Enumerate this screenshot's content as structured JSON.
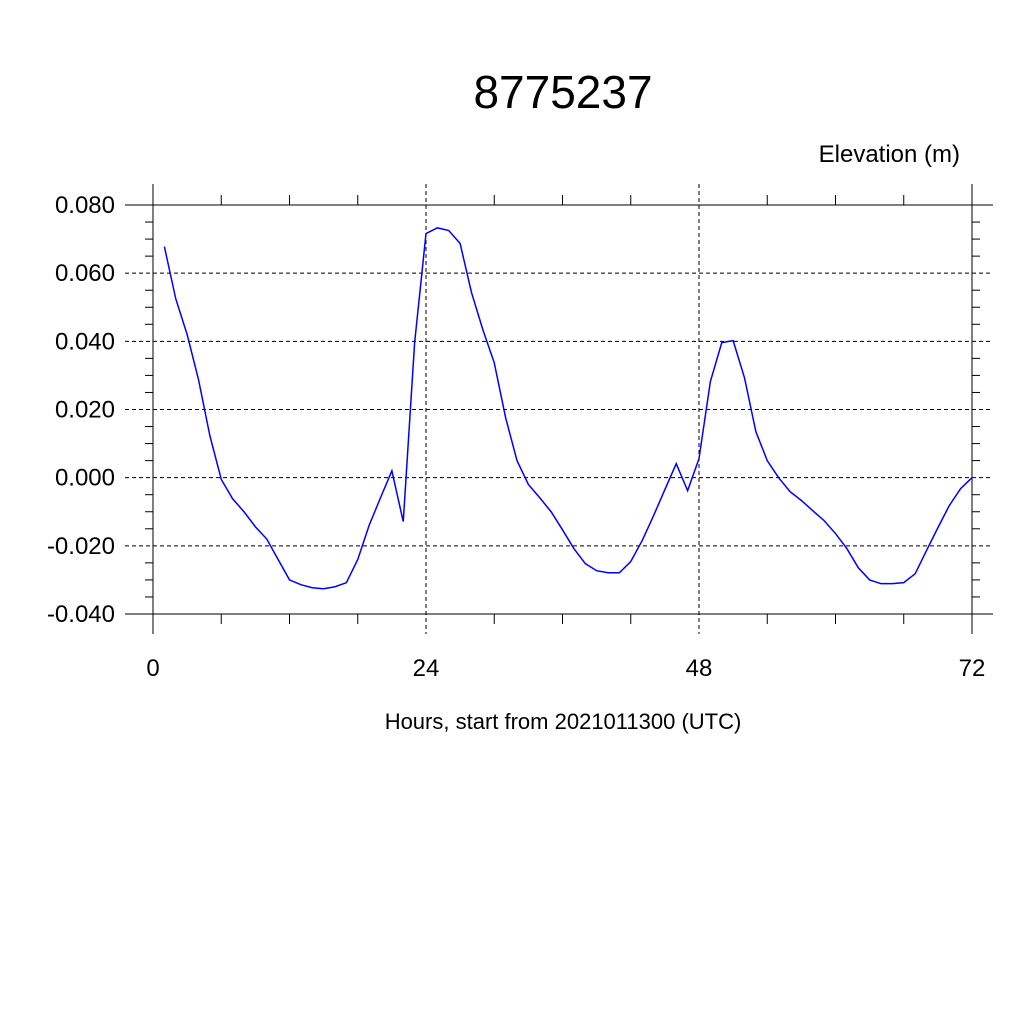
{
  "chart_data": {
    "type": "line",
    "title": "8775237",
    "subtitle": "Elevation (m)",
    "x_label": "Hours, start from 2021011300 (UTC)",
    "x": [
      1,
      2,
      3,
      4,
      5,
      6,
      7,
      8,
      9,
      10,
      11,
      12,
      13,
      14,
      15,
      16,
      17,
      18,
      19,
      20,
      21,
      22,
      23,
      24,
      25,
      26,
      27,
      28,
      29,
      30,
      31,
      32,
      33,
      34,
      35,
      36,
      37,
      38,
      39,
      40,
      41,
      42,
      43,
      44,
      45,
      46,
      47,
      48,
      49,
      50,
      51,
      52,
      53,
      54,
      55,
      56,
      57,
      58,
      59,
      60,
      61,
      62,
      63,
      64,
      65,
      66,
      67,
      68,
      69,
      70,
      71,
      72
    ],
    "series": [
      {
        "color": "#0000ff",
        "values": [
          0.0678,
          0.0525,
          0.042,
          0.0288,
          0.0123,
          -0.0005,
          -0.0062,
          -0.01,
          -0.0144,
          -0.018,
          -0.024,
          -0.03,
          -0.0314,
          -0.0323,
          -0.0326,
          -0.032,
          -0.0308,
          -0.024,
          -0.014,
          -0.0059,
          0.002,
          -0.0129,
          0.0396,
          0.0716,
          0.0733,
          0.0725,
          0.0687,
          0.0543,
          0.0434,
          0.0337,
          0.0176,
          0.005,
          -0.002,
          -0.0059,
          -0.01,
          -0.0153,
          -0.0208,
          -0.0252,
          -0.0273,
          -0.0279,
          -0.0279,
          -0.0246,
          -0.0185,
          -0.0112,
          -0.0035,
          0.0041,
          -0.0038,
          0.0056,
          0.0282,
          0.0396,
          0.0402,
          0.0293,
          0.0135,
          0.005,
          0.0,
          -0.0041,
          -0.0067,
          -0.0097,
          -0.0126,
          -0.0164,
          -0.0208,
          -0.0264,
          -0.03,
          -0.0311,
          -0.0311,
          -0.0308,
          -0.0282,
          -0.0214,
          -0.0147,
          -0.0082,
          -0.0032,
          0.0
        ]
      }
    ],
    "xlim": [
      0,
      72
    ],
    "xticks": [
      0,
      24,
      48,
      72
    ],
    "ylim": [
      -0.04,
      0.08
    ],
    "yticks": [
      {
        "value": -0.04,
        "label": "-0.040"
      },
      {
        "value": -0.02,
        "label": "-0.020"
      },
      {
        "value": 0,
        "label": "0.000"
      },
      {
        "value": 0.02,
        "label": "0.020"
      },
      {
        "value": 0.04,
        "label": "0.040"
      },
      {
        "value": 0.06,
        "label": "0.060"
      },
      {
        "value": 0.08,
        "label": "0.080"
      }
    ],
    "grid": true
  }
}
